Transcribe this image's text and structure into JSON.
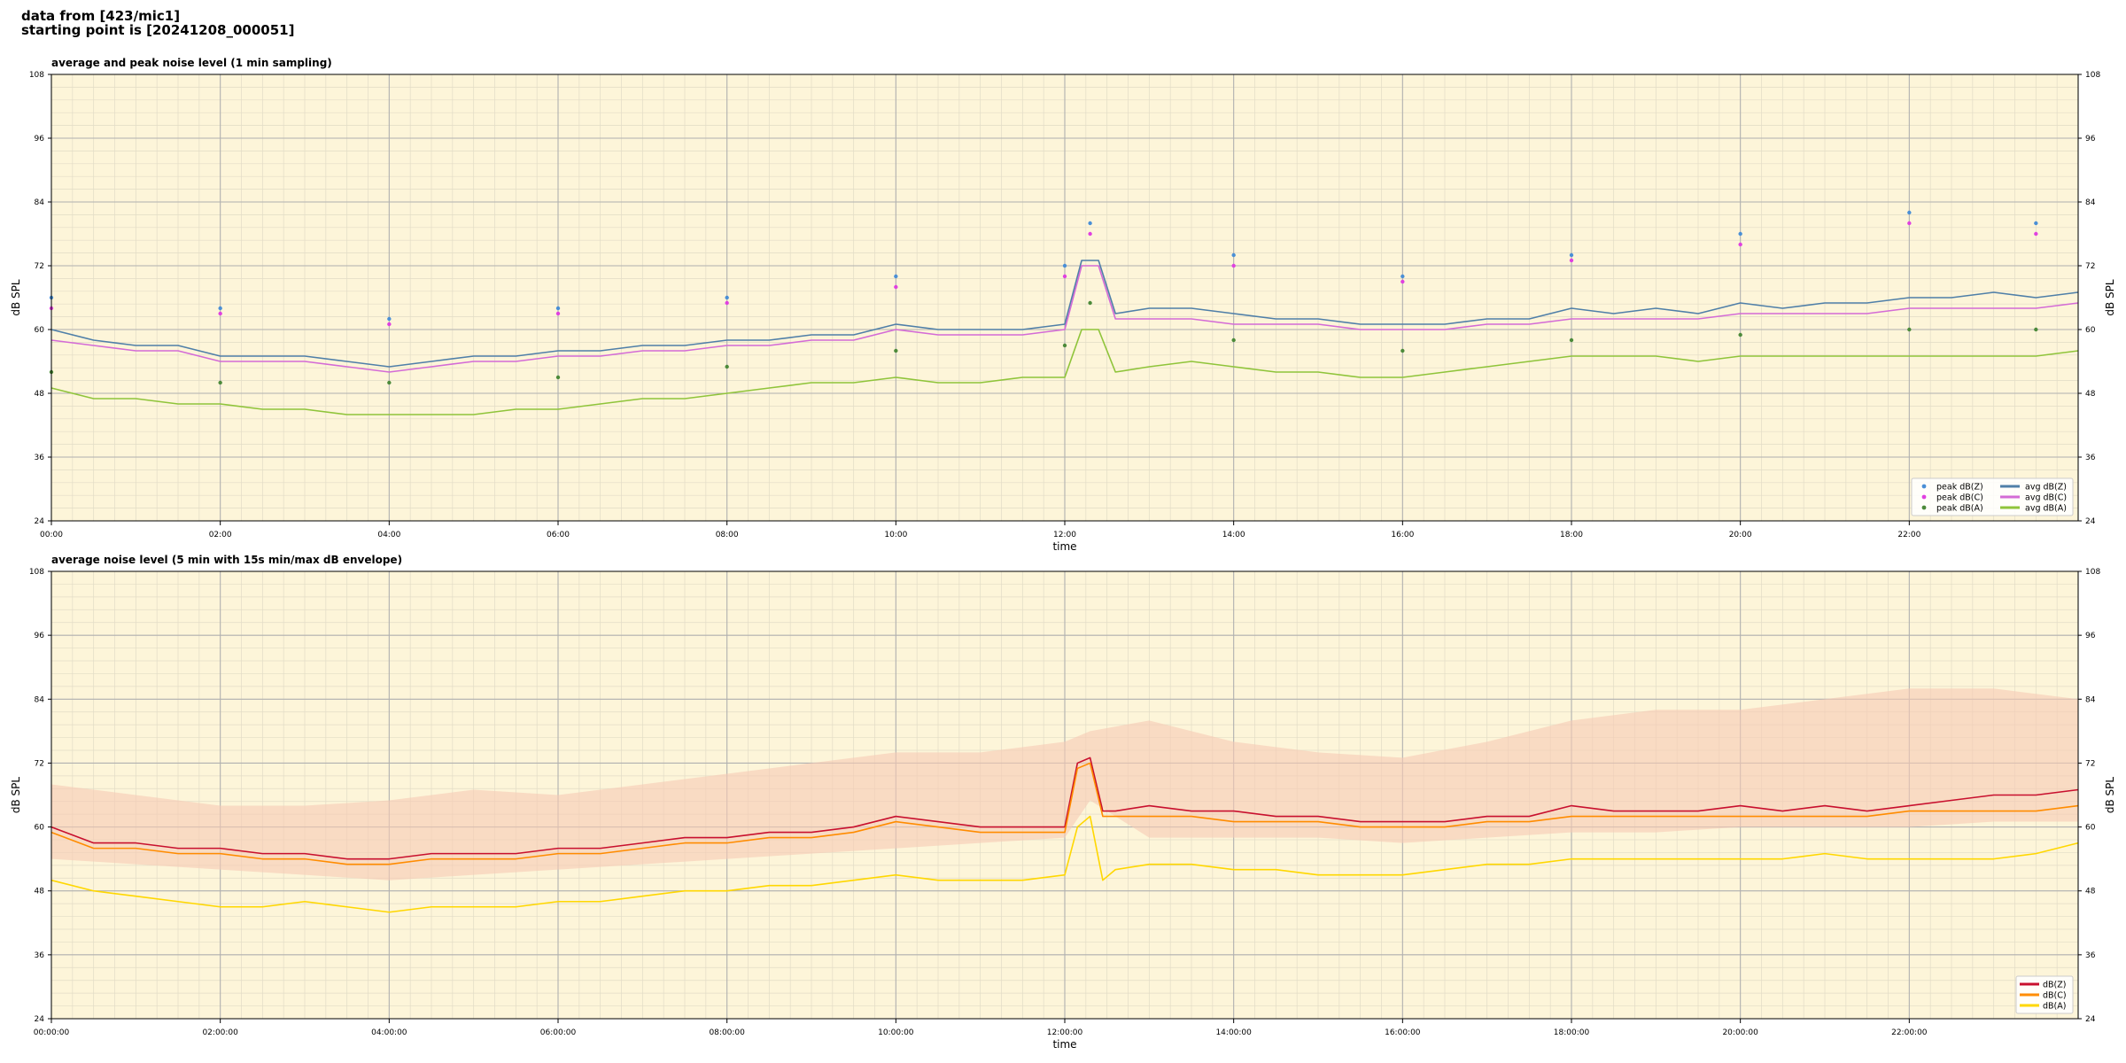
{
  "header": {
    "line1": "data from [423/mic1]",
    "line2": "starting point is [20241208_000051]"
  },
  "chart_data": [
    {
      "type": "line",
      "title": "average and peak noise level (1 min sampling)",
      "xlabel": "time",
      "ylabel": "dB SPL",
      "xlim": [
        0,
        24
      ],
      "ylim": [
        24,
        108
      ],
      "y_ticks": [
        "24",
        "36",
        "48",
        "60",
        "72",
        "84",
        "96",
        "108"
      ],
      "x_tick_labels": [
        "00:00",
        "02:00",
        "04:00",
        "06:00",
        "08:00",
        "10:00",
        "12:00",
        "14:00",
        "16:00",
        "18:00",
        "20:00",
        "22:00"
      ],
      "grid": true,
      "legend_position": "lower right",
      "background_color": "#fdf5d9",
      "x_unit": "hours since 00:00",
      "series": [
        {
          "name": "peak dB(Z)",
          "kind": "scatter",
          "color": "#4a8fd6",
          "x": [
            0,
            2,
            4,
            6,
            8,
            10,
            12,
            12.3,
            14,
            16,
            18,
            20,
            22,
            23.5
          ],
          "y": [
            66,
            64,
            62,
            64,
            66,
            70,
            72,
            80,
            74,
            70,
            74,
            78,
            82,
            80
          ]
        },
        {
          "name": "peak dB(C)",
          "kind": "scatter",
          "color": "#e040e0",
          "x": [
            0,
            2,
            4,
            6,
            8,
            10,
            12,
            12.3,
            14,
            16,
            18,
            20,
            22,
            23.5
          ],
          "y": [
            64,
            63,
            61,
            63,
            65,
            68,
            70,
            78,
            72,
            69,
            73,
            76,
            80,
            78
          ]
        },
        {
          "name": "peak dB(A)",
          "kind": "scatter",
          "color": "#4c8a3a",
          "x": [
            0,
            2,
            4,
            6,
            8,
            10,
            12,
            12.3,
            14,
            16,
            18,
            20,
            22,
            23.5
          ],
          "y": [
            52,
            50,
            50,
            51,
            53,
            56,
            57,
            65,
            58,
            56,
            58,
            59,
            60,
            60
          ]
        },
        {
          "name": "avg dB(Z)",
          "kind": "line",
          "color": "#4f7fa8",
          "x": [
            0,
            0.5,
            1,
            1.5,
            2,
            2.5,
            3,
            3.5,
            4,
            4.5,
            5,
            5.5,
            6,
            6.5,
            7,
            7.5,
            8,
            8.5,
            9,
            9.5,
            10,
            10.5,
            11,
            11.5,
            12,
            12.2,
            12.4,
            12.6,
            13,
            13.5,
            14,
            14.5,
            15,
            15.5,
            16,
            16.5,
            17,
            17.5,
            18,
            18.5,
            19,
            19.5,
            20,
            20.5,
            21,
            21.5,
            22,
            22.5,
            23,
            23.5,
            24
          ],
          "y": [
            60,
            58,
            57,
            57,
            55,
            55,
            55,
            54,
            53,
            54,
            55,
            55,
            56,
            56,
            57,
            57,
            58,
            58,
            59,
            59,
            61,
            60,
            60,
            60,
            61,
            73,
            73,
            63,
            64,
            64,
            63,
            62,
            62,
            61,
            61,
            61,
            62,
            62,
            64,
            63,
            64,
            63,
            65,
            64,
            65,
            65,
            66,
            66,
            67,
            66,
            67
          ]
        },
        {
          "name": "avg dB(C)",
          "kind": "line",
          "color": "#d46bd6",
          "x": [
            0,
            0.5,
            1,
            1.5,
            2,
            2.5,
            3,
            3.5,
            4,
            4.5,
            5,
            5.5,
            6,
            6.5,
            7,
            7.5,
            8,
            8.5,
            9,
            9.5,
            10,
            10.5,
            11,
            11.5,
            12,
            12.2,
            12.4,
            12.6,
            13,
            13.5,
            14,
            14.5,
            15,
            15.5,
            16,
            16.5,
            17,
            17.5,
            18,
            18.5,
            19,
            19.5,
            20,
            20.5,
            21,
            21.5,
            22,
            22.5,
            23,
            23.5,
            24
          ],
          "y": [
            58,
            57,
            56,
            56,
            54,
            54,
            54,
            53,
            52,
            53,
            54,
            54,
            55,
            55,
            56,
            56,
            57,
            57,
            58,
            58,
            60,
            59,
            59,
            59,
            60,
            72,
            72,
            62,
            62,
            62,
            61,
            61,
            61,
            60,
            60,
            60,
            61,
            61,
            62,
            62,
            62,
            62,
            63,
            63,
            63,
            63,
            64,
            64,
            64,
            64,
            65
          ]
        },
        {
          "name": "avg dB(A)",
          "kind": "line",
          "color": "#8fc43a",
          "x": [
            0,
            0.5,
            1,
            1.5,
            2,
            2.5,
            3,
            3.5,
            4,
            4.5,
            5,
            5.5,
            6,
            6.5,
            7,
            7.5,
            8,
            8.5,
            9,
            9.5,
            10,
            10.5,
            11,
            11.5,
            12,
            12.2,
            12.4,
            12.6,
            13,
            13.5,
            14,
            14.5,
            15,
            15.5,
            16,
            16.5,
            17,
            17.5,
            18,
            18.5,
            19,
            19.5,
            20,
            20.5,
            21,
            21.5,
            22,
            22.5,
            23,
            23.5,
            24
          ],
          "y": [
            49,
            47,
            47,
            46,
            46,
            45,
            45,
            44,
            44,
            44,
            44,
            45,
            45,
            46,
            47,
            47,
            48,
            49,
            50,
            50,
            51,
            50,
            50,
            51,
            51,
            60,
            60,
            52,
            53,
            54,
            53,
            52,
            52,
            51,
            51,
            52,
            53,
            54,
            55,
            55,
            55,
            54,
            55,
            55,
            55,
            55,
            55,
            55,
            55,
            55,
            56
          ]
        }
      ]
    },
    {
      "type": "line",
      "title": "average noise level (5 min with 15s min/max dB envelope)",
      "xlabel": "time",
      "ylabel": "dB SPL",
      "xlim": [
        0,
        24
      ],
      "ylim": [
        24,
        108
      ],
      "y_ticks": [
        "24",
        "36",
        "48",
        "60",
        "72",
        "84",
        "96",
        "108"
      ],
      "x_tick_labels": [
        "00:00:00",
        "02:00:00",
        "04:00:00",
        "06:00:00",
        "08:00:00",
        "10:00:00",
        "12:00:00",
        "14:00:00",
        "16:00:00",
        "18:00:00",
        "20:00:00",
        "22:00:00"
      ],
      "grid": true,
      "legend_position": "lower right",
      "background_color": "#fdf5d9",
      "x_unit": "hours since 00:00",
      "envelope": {
        "color": "#f6c9b4",
        "x": [
          0,
          1,
          2,
          3,
          4,
          5,
          6,
          7,
          8,
          9,
          10,
          11,
          12,
          12.3,
          13,
          14,
          15,
          16,
          17,
          18,
          19,
          20,
          21,
          22,
          23,
          24
        ],
        "min": [
          54,
          53,
          52,
          51,
          50,
          51,
          52,
          53,
          54,
          55,
          56,
          57,
          58,
          65,
          58,
          58,
          58,
          57,
          58,
          59,
          59,
          60,
          60,
          60,
          61,
          61
        ],
        "max": [
          68,
          66,
          64,
          64,
          65,
          67,
          66,
          68,
          70,
          72,
          74,
          74,
          76,
          78,
          80,
          76,
          74,
          73,
          76,
          80,
          82,
          82,
          84,
          86,
          86,
          84
        ]
      },
      "series": [
        {
          "name": "dB(Z)",
          "color": "#c8102e",
          "x": [
            0,
            0.5,
            1,
            1.5,
            2,
            2.5,
            3,
            3.5,
            4,
            4.5,
            5,
            5.5,
            6,
            6.5,
            7,
            7.5,
            8,
            8.5,
            9,
            9.5,
            10,
            10.5,
            11,
            11.5,
            12,
            12.15,
            12.3,
            12.45,
            12.6,
            13,
            13.5,
            14,
            14.5,
            15,
            15.5,
            16,
            16.5,
            17,
            17.5,
            18,
            18.5,
            19,
            19.5,
            20,
            20.5,
            21,
            21.5,
            22,
            22.5,
            23,
            23.5,
            24
          ],
          "y": [
            60,
            57,
            57,
            56,
            56,
            55,
            55,
            54,
            54,
            55,
            55,
            55,
            56,
            56,
            57,
            58,
            58,
            59,
            59,
            60,
            62,
            61,
            60,
            60,
            60,
            72,
            73,
            63,
            63,
            64,
            63,
            63,
            62,
            62,
            61,
            61,
            61,
            62,
            62,
            64,
            63,
            63,
            63,
            64,
            63,
            64,
            63,
            64,
            65,
            66,
            66,
            67
          ]
        },
        {
          "name": "dB(C)",
          "color": "#ff8c00",
          "x": [
            0,
            0.5,
            1,
            1.5,
            2,
            2.5,
            3,
            3.5,
            4,
            4.5,
            5,
            5.5,
            6,
            6.5,
            7,
            7.5,
            8,
            8.5,
            9,
            9.5,
            10,
            10.5,
            11,
            11.5,
            12,
            12.15,
            12.3,
            12.45,
            12.6,
            13,
            13.5,
            14,
            14.5,
            15,
            15.5,
            16,
            16.5,
            17,
            17.5,
            18,
            18.5,
            19,
            19.5,
            20,
            20.5,
            21,
            21.5,
            22,
            22.5,
            23,
            23.5,
            24
          ],
          "y": [
            59,
            56,
            56,
            55,
            55,
            54,
            54,
            53,
            53,
            54,
            54,
            54,
            55,
            55,
            56,
            57,
            57,
            58,
            58,
            59,
            61,
            60,
            59,
            59,
            59,
            71,
            72,
            62,
            62,
            62,
            62,
            61,
            61,
            61,
            60,
            60,
            60,
            61,
            61,
            62,
            62,
            62,
            62,
            62,
            62,
            62,
            62,
            63,
            63,
            63,
            63,
            64
          ]
        },
        {
          "name": "dB(A)",
          "color": "#ffd700",
          "x": [
            0,
            0.5,
            1,
            1.5,
            2,
            2.5,
            3,
            3.5,
            4,
            4.5,
            5,
            5.5,
            6,
            6.5,
            7,
            7.5,
            8,
            8.5,
            9,
            9.5,
            10,
            10.5,
            11,
            11.5,
            12,
            12.15,
            12.3,
            12.45,
            12.6,
            13,
            13.5,
            14,
            14.5,
            15,
            15.5,
            16,
            16.5,
            17,
            17.5,
            18,
            18.5,
            19,
            19.5,
            20,
            20.5,
            21,
            21.5,
            22,
            22.5,
            23,
            23.5,
            24
          ],
          "y": [
            50,
            48,
            47,
            46,
            45,
            45,
            46,
            45,
            44,
            45,
            45,
            45,
            46,
            46,
            47,
            48,
            48,
            49,
            49,
            50,
            51,
            50,
            50,
            50,
            51,
            60,
            62,
            50,
            52,
            53,
            53,
            52,
            52,
            51,
            51,
            51,
            52,
            53,
            53,
            54,
            54,
            54,
            54,
            54,
            54,
            55,
            54,
            54,
            54,
            54,
            55,
            57
          ]
        }
      ]
    }
  ]
}
